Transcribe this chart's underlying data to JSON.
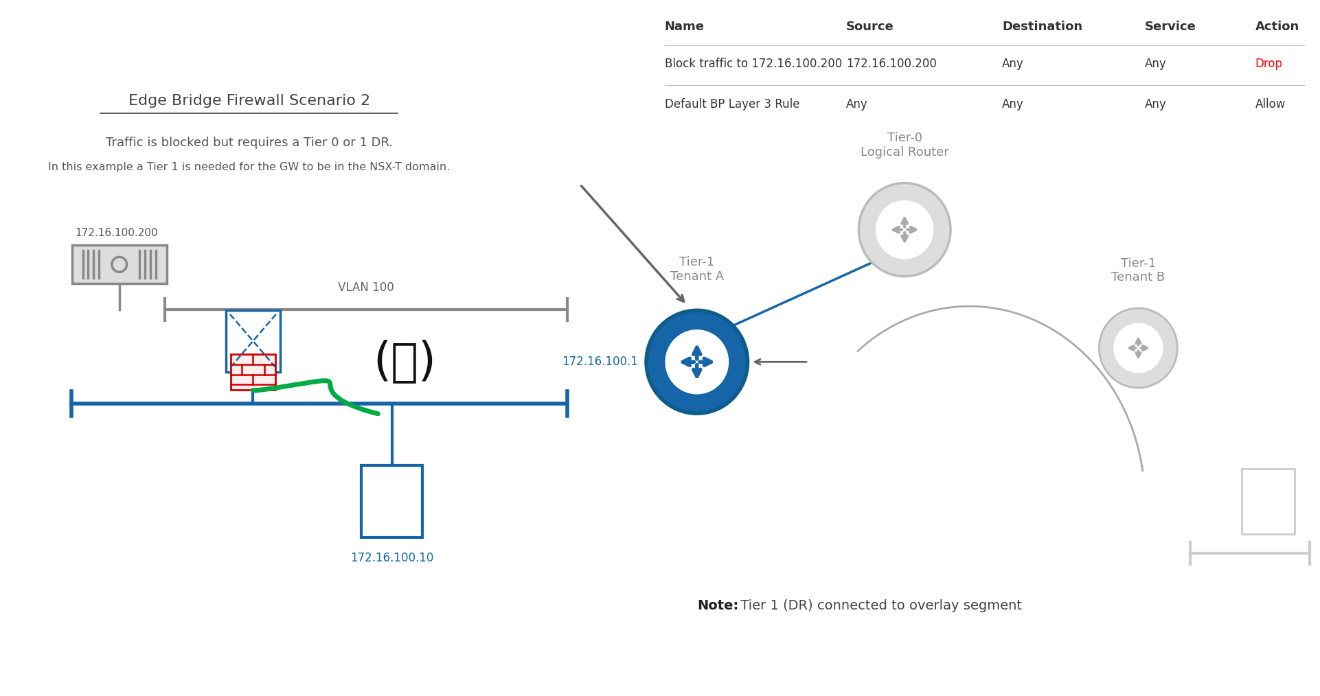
{
  "title": "Edge Bridge Firewall Scenario 2",
  "subtitle1": "Traffic is blocked but requires a Tier 0 or 1 DR.",
  "subtitle2": "In this example a Tier 1 is needed for the GW to be in the NSX-T domain.",
  "bg_color": "#ffffff",
  "table_headers": [
    "Name",
    "Source",
    "Destination",
    "Service",
    "Action"
  ],
  "table_row1": [
    "Block traffic to 172.16.100.200",
    "172.16.100.200",
    "Any",
    "Any",
    "Drop"
  ],
  "table_row2": [
    "Default BP Layer 3 Rule",
    "Any",
    "Any",
    "Any",
    "Allow"
  ],
  "drop_color": "#ff0000",
  "table_text_color": "#333333",
  "gray_color": "#999999",
  "blue_color": "#1565a8",
  "dark_blue": "#0d5c8a",
  "red_color": "#cc0000",
  "green_color": "#00aa44",
  "vlan_label": "VLAN 100",
  "ip_server": "172.16.100.200",
  "ip_router": "172.16.100.1",
  "ip_vm": "172.16.100.10",
  "tier0_label": "Tier-0\nLogical Router",
  "tier1a_label": "Tier-1\nTenant A",
  "tier1b_label": "Tier-1\nTenant B",
  "note_bold": "Note:",
  "note_rest": " Tier 1 (DR) connected to overlay segment",
  "shrug_text": "(ツ)"
}
